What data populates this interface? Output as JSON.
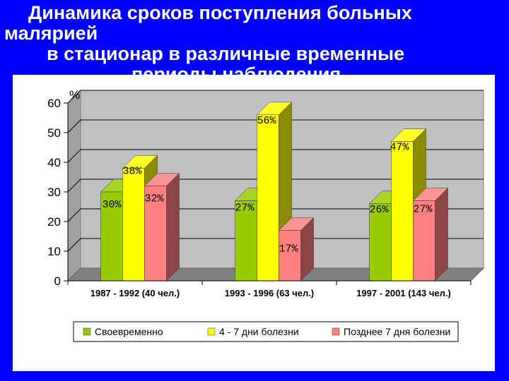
{
  "title": {
    "line1": "Динамика сроков поступления больных",
    "line2": "малярией",
    "line3": "в стационар в различные временные",
    "line4": "периоды наблюдения"
  },
  "chart_data": {
    "type": "bar",
    "ylabel": "%",
    "ylim": [
      0,
      60
    ],
    "yticks": [
      0,
      10,
      20,
      30,
      40,
      50,
      60
    ],
    "categories": [
      "1987 - 1992 (40 чел.)",
      "1993 - 1996 (63 чел.)",
      "1997 - 2001 (143 чел.)"
    ],
    "series": [
      {
        "name": "Своевременно",
        "values": [
          30,
          27,
          26
        ],
        "labels": [
          "30%",
          "27%",
          "26%"
        ],
        "color": "#99cc00"
      },
      {
        "name": "4 - 7 дни болезни",
        "values": [
          38,
          56,
          47
        ],
        "labels": [
          "38%",
          "56%",
          "47%"
        ],
        "color": "#ffff00"
      },
      {
        "name": "Позднее 7 дня болезни",
        "values": [
          32,
          17,
          27
        ],
        "labels": [
          "32%",
          "17%",
          "27%"
        ],
        "color": "#ff8080"
      }
    ],
    "legend_position": "bottom",
    "grid": true
  },
  "colors": {
    "background": "#0000ff",
    "plot_wall": "#c0c0c0",
    "plot_floor": "#808080",
    "legend_border": "#000000"
  }
}
